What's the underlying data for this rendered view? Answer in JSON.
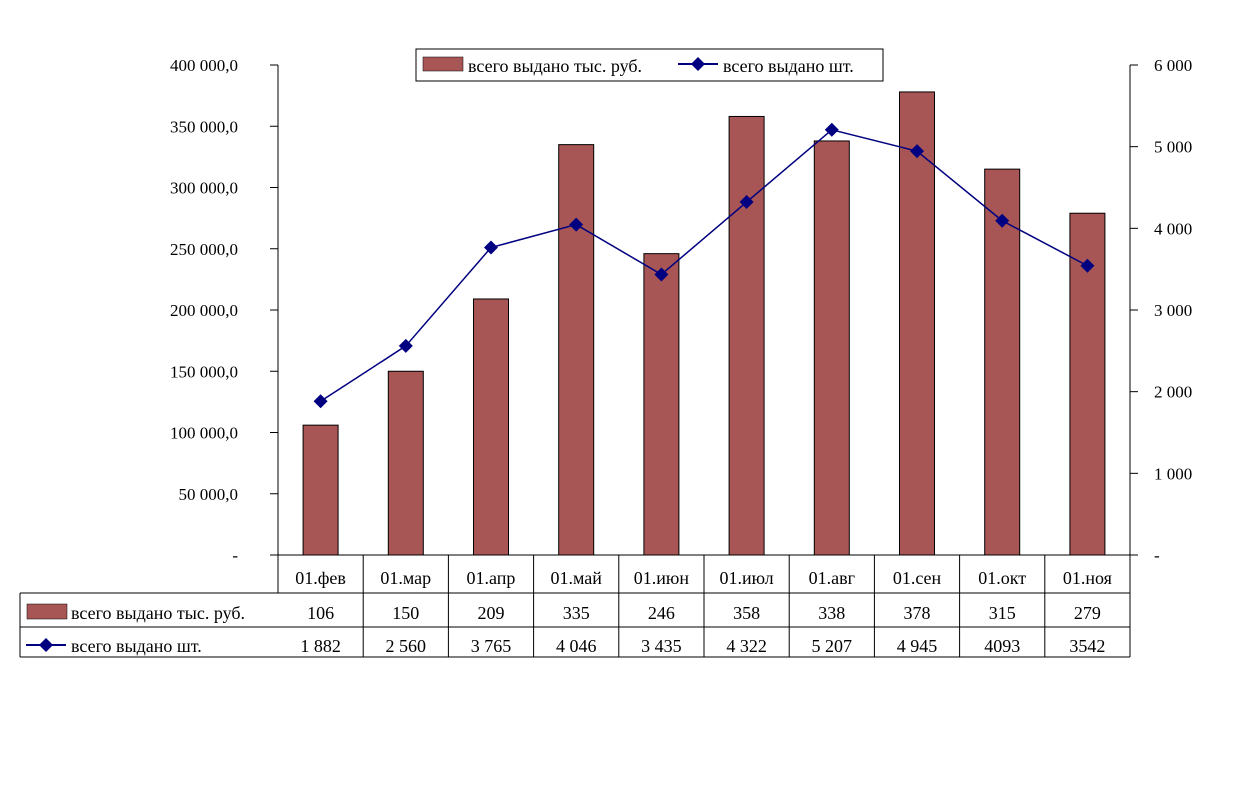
{
  "chart_data": {
    "type": "bar+line",
    "categories": [
      "01.фев",
      "01.мар",
      "01.апр",
      "01.май",
      "01.июн",
      "01.июл",
      "01.авг",
      "01.сен",
      "01.окт",
      "01.ноя"
    ],
    "series": [
      {
        "name": "всего выдано тыс. руб.",
        "type": "bar",
        "axis": "left",
        "color": "#A85555",
        "values": [
          106,
          150,
          209,
          335,
          246,
          358,
          338,
          378,
          315,
          279
        ],
        "table_labels": [
          "106",
          "150",
          "209",
          "335",
          "246",
          "358",
          "338",
          "378",
          "315",
          "279"
        ],
        "unit_multiplier": 1000
      },
      {
        "name": "всего выдано шт.",
        "type": "line",
        "axis": "right",
        "color": "#000080",
        "marker": "diamond",
        "values": [
          1882,
          2560,
          3765,
          4046,
          3435,
          4322,
          5207,
          4945,
          4093,
          3542
        ],
        "table_labels": [
          "1 882",
          "2 560",
          "3 765",
          "4 046",
          "3 435",
          "4 322",
          "5 207",
          "4 945",
          "4093",
          "3542"
        ]
      }
    ],
    "y_left": {
      "ylim": [
        0,
        400000
      ],
      "ticks": [
        0,
        50000,
        100000,
        150000,
        200000,
        250000,
        300000,
        350000,
        400000
      ],
      "tick_labels": [
        "-",
        "50 000,0",
        "100 000,0",
        "150 000,0",
        "200 000,0",
        "250 000,0",
        "300 000,0",
        "350 000,0",
        "400 000,0"
      ]
    },
    "y_right": {
      "ylim": [
        0,
        6000
      ],
      "ticks": [
        0,
        1000,
        2000,
        3000,
        4000,
        5000,
        6000
      ],
      "tick_labels": [
        "-",
        "1 000",
        "2 000",
        "3 000",
        "4 000",
        "5 000",
        "6 000"
      ]
    },
    "title": "",
    "xlabel": "",
    "legend": {
      "placement": "top-center",
      "entries": [
        "всего выдано тыс. руб.",
        "всего выдано шт."
      ]
    },
    "grid": false,
    "data_table": true
  }
}
